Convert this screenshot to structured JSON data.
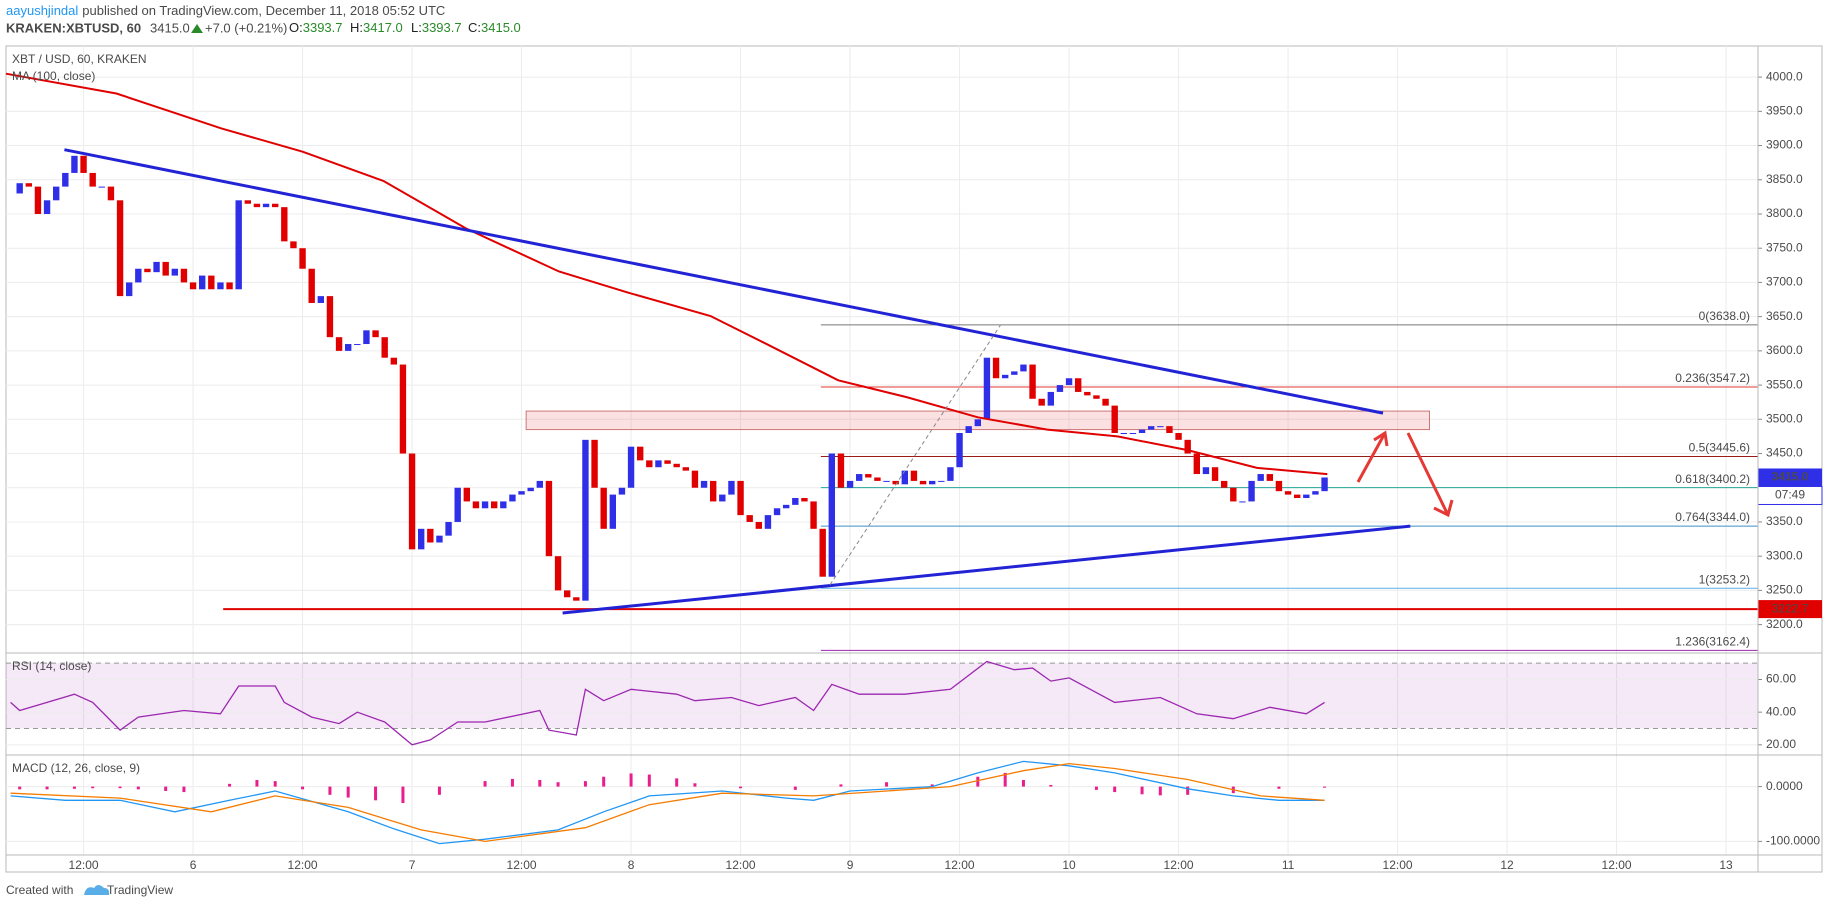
{
  "header": {
    "author": "aayushjindal",
    "published": "published on TradingView.com, December 11, 2018 05:52 UTC",
    "symbol": "KRAKEN:XBTUSD, 60",
    "last": "3415.0",
    "change": "+7.0 (+0.21%)",
    "ohlc": [
      {
        "k": "O:",
        "v": "3393.7"
      },
      {
        "k": "H:",
        "v": "3417.0"
      },
      {
        "k": "L:",
        "v": "3393.7"
      },
      {
        "k": "C:",
        "v": "3415.0"
      }
    ]
  },
  "footer": {
    "created": "Created with",
    "brand": "TradingView"
  },
  "chart_data": [
    {
      "type": "candlestick",
      "title": "XBT / USD, 60, KRAKEN",
      "up_color": "#2f2fe8",
      "down_color": "#e00000",
      "values": [
        3830,
        3845,
        3840,
        3800,
        3820,
        3840,
        3860,
        3885,
        3860,
        3840,
        3840,
        3820,
        3680,
        3700,
        3720,
        3715,
        3730,
        3710,
        3720,
        3700,
        3690,
        3710,
        3690,
        3700,
        3690,
        3820,
        3815,
        3810,
        3815,
        3810,
        3760,
        3750,
        3720,
        3670,
        3680,
        3620,
        3600,
        3610,
        3610,
        3630,
        3620,
        3590,
        3580,
        3450,
        3310,
        3340,
        3320,
        3330,
        3350,
        3400,
        3380,
        3370,
        3380,
        3370,
        3380,
        3390,
        3395,
        3400,
        3410,
        3300,
        3250,
        3240,
        3235,
        3470,
        3400,
        3340,
        3390,
        3400,
        3460,
        3440,
        3430,
        3440,
        3435,
        3430,
        3425,
        3400,
        3410,
        3380,
        3390,
        3410,
        3360,
        3350,
        3340,
        3360,
        3370,
        3375,
        3385,
        3380,
        3340,
        3270,
        3450,
        3400,
        3410,
        3420,
        3415,
        3410,
        3410,
        3405,
        3425,
        3410,
        3405,
        3410,
        3410,
        3430,
        3480,
        3490,
        3500,
        3590,
        3560,
        3565,
        3570,
        3580,
        3530,
        3520,
        3540,
        3550,
        3560,
        3540,
        3535,
        3530,
        3520,
        3480,
        3480,
        3480,
        3485,
        3490,
        3490,
        3480,
        3470,
        3450,
        3420,
        3430,
        3410,
        3400,
        3380,
        3380,
        3410,
        3420,
        3410,
        3395,
        3390,
        3385,
        3390,
        3395,
        3415
      ],
      "xlim": [
        -0.5,
        191.5
      ],
      "xticks": [
        {
          "value": 8,
          "label": "12:00"
        },
        {
          "value": 20,
          "label": "6"
        },
        {
          "value": 32,
          "label": "12:00"
        },
        {
          "value": 44,
          "label": "7"
        },
        {
          "value": 56,
          "label": "12:00"
        },
        {
          "value": 68,
          "label": "8"
        },
        {
          "value": 80,
          "label": "12:00"
        },
        {
          "value": 92,
          "label": "9"
        },
        {
          "value": 104,
          "label": "12:00"
        },
        {
          "value": 116,
          "label": "10"
        },
        {
          "value": 128,
          "label": "12:00"
        },
        {
          "value": 140,
          "label": "11"
        },
        {
          "value": 152,
          "label": "12:00"
        },
        {
          "value": 164,
          "label": "12"
        },
        {
          "value": 176,
          "label": "12:00"
        },
        {
          "value": 188,
          "label": "13"
        }
      ],
      "ylim": [
        3160,
        4044
      ],
      "yticks": [
        {
          "value": 3200,
          "label": "3200.0"
        },
        {
          "value": 3250,
          "label": "3250.0"
        },
        {
          "value": 3300,
          "label": "3300.0"
        },
        {
          "value": 3350,
          "label": "3350.0"
        },
        {
          "value": 3400,
          "label": "3400.0"
        },
        {
          "value": 3450,
          "label": "3450.0"
        },
        {
          "value": 3500,
          "label": "3500.0"
        },
        {
          "value": 3550,
          "label": "3550.0"
        },
        {
          "value": 3600,
          "label": "3600.0"
        },
        {
          "value": 3650,
          "label": "3650.0"
        },
        {
          "value": 3700,
          "label": "3700.0"
        },
        {
          "value": 3750,
          "label": "3750.0"
        },
        {
          "value": 3800,
          "label": "3800.0"
        },
        {
          "value": 3850,
          "label": "3850.0"
        },
        {
          "value": 3900,
          "label": "3900.0"
        },
        {
          "value": 3950,
          "label": "3950.0"
        },
        {
          "value": 4000,
          "label": "4000.0"
        }
      ],
      "grid": true,
      "overlays": [
        {
          "name": "MA (100, close)",
          "color": "#e00000",
          "x": [
            -0.5,
            11.6,
            23.1,
            32,
            40.9,
            49.9,
            60.1,
            67.7,
            76.7,
            83,
            90.7,
            98.3,
            106,
            113.6,
            121.3,
            129,
            136.6,
            144.3
          ],
          "values": [
            4005,
            3976,
            3925,
            3891,
            3848,
            3779,
            3716,
            3685,
            3651,
            3609,
            3557,
            3532,
            3503,
            3485,
            3475,
            3455,
            3429,
            3420
          ]
        }
      ],
      "trendlines": [
        {
          "color": "#2323d6",
          "width": 3,
          "x": [
            5.9,
            150.4
          ],
          "values": [
            3894,
            3509
          ]
        },
        {
          "color": "#2323d6",
          "width": 3,
          "x": [
            60.5,
            153.4
          ],
          "values": [
            3217,
            3344
          ]
        },
        {
          "color": "#888888",
          "width": 1,
          "dash": true,
          "x": [
            89.8,
            108.5
          ],
          "values": [
            3258,
            3638
          ]
        }
      ],
      "zone": {
        "x": [
          56.5,
          155.5
        ],
        "values": [
          3485,
          3512
        ]
      },
      "support": {
        "value": 3222.7,
        "label": "3222.7",
        "color": "#e00000",
        "x_start": 23.3
      },
      "fib": {
        "x_start": 88.8,
        "levels": [
          {
            "value": 3638,
            "label": "0(3638.0)",
            "color": "#787878"
          },
          {
            "value": 3547.2,
            "label": "0.236(3547.2)",
            "color": "#e53935"
          },
          {
            "value": 3445.6,
            "label": "0.5(3445.6)",
            "color": "#9b1b1b"
          },
          {
            "value": 3400.2,
            "label": "0.618(3400.2)",
            "color": "#26a69a"
          },
          {
            "value": 3344,
            "label": "0.764(3344.0)",
            "color": "#3d8fc7"
          },
          {
            "value": 3253.2,
            "label": "1(3253.2)",
            "color": "#5aaee8"
          },
          {
            "value": 3162.4,
            "label": "1.236(3162.4)",
            "color": "#9c27b0"
          }
        ]
      },
      "last": {
        "value": 3415,
        "label": "3415.0",
        "countdown": "07:49",
        "color": "#2f2fe8"
      }
    },
    {
      "type": "line",
      "title": "RSI (14, close)",
      "xlim": [
        -0.5,
        191.5
      ],
      "ylim": [
        15,
        75
      ],
      "band": [
        30,
        70
      ],
      "yticks": [
        {
          "value": 20,
          "label": "20.00"
        },
        {
          "value": 40,
          "label": "40.00"
        },
        {
          "value": 60,
          "label": "60.00"
        }
      ],
      "series": [
        {
          "color": "#9c27b0",
          "x": [
            0,
            1,
            4,
            7,
            9,
            12,
            14,
            19,
            23,
            25,
            29,
            30,
            33,
            36,
            38,
            41,
            44,
            46,
            49,
            52,
            58,
            59,
            62,
            63,
            65,
            68,
            73,
            75,
            79,
            82,
            86,
            88,
            90,
            93,
            98,
            103,
            107,
            110,
            112,
            114,
            116,
            121,
            126,
            130,
            134,
            138,
            142,
            144
          ],
          "values": [
            46,
            41,
            46,
            51,
            46,
            29,
            37,
            41,
            39,
            56,
            56,
            46,
            37,
            33,
            40,
            34,
            20,
            23,
            34,
            34,
            41,
            29,
            26,
            54,
            47,
            54,
            51,
            47,
            49,
            44,
            49,
            41,
            57,
            51,
            51,
            54,
            71,
            66,
            67,
            59,
            61,
            46,
            49,
            39,
            36,
            43,
            39,
            46
          ]
        }
      ]
    },
    {
      "type": "combo",
      "title": "MACD (12, 26, close, 9)",
      "xlim": [
        -0.5,
        191.5
      ],
      "ylim": [
        -123,
        54
      ],
      "yticks": [
        {
          "value": -100,
          "label": "-100.0000"
        },
        {
          "value": 0,
          "label": "0.0000"
        }
      ],
      "series": [
        {
          "type": "bar",
          "color": "#e91e8c",
          "x": [
            1,
            4,
            7,
            9,
            12,
            14,
            17,
            19,
            24,
            27,
            29,
            32,
            35,
            37,
            40,
            43,
            47,
            52,
            55,
            58,
            60,
            63,
            65,
            68,
            70,
            73,
            75,
            80,
            86,
            91,
            96,
            101,
            106,
            109,
            111,
            114,
            119,
            121,
            124,
            126,
            129,
            134,
            139,
            144
          ],
          "values": [
            -5,
            -5,
            -4,
            -3,
            -3,
            -5,
            -8,
            -10,
            5,
            12,
            10,
            -5,
            -15,
            -20,
            -25,
            -30,
            -15,
            10,
            14,
            12,
            8,
            10,
            18,
            24,
            22,
            15,
            6,
            -3,
            -6,
            4,
            8,
            4,
            18,
            25,
            12,
            3,
            -6,
            -10,
            -14,
            -16,
            -15,
            -12,
            -4,
            -2
          ]
        },
        {
          "type": "line",
          "color": "#2196f3",
          "x": [
            0,
            6,
            12,
            18,
            24,
            29,
            37,
            42,
            47,
            52,
            60,
            65,
            70,
            78,
            85,
            88,
            92,
            101,
            106,
            111,
            116,
            121,
            129,
            134,
            139,
            144
          ],
          "values": [
            -17,
            -25,
            -25,
            -46,
            -25,
            -8,
            -46,
            -77,
            -104,
            -96,
            -79,
            -46,
            -17,
            -8,
            -21,
            -25,
            -8,
            0,
            25,
            46,
            38,
            25,
            -4,
            -17,
            -25,
            -25
          ]
        },
        {
          "type": "line",
          "color": "#f57c00",
          "x": [
            0,
            12,
            22,
            29,
            37,
            45,
            52,
            63,
            70,
            78,
            88,
            96,
            103,
            111,
            116,
            121,
            129,
            137,
            144
          ],
          "values": [
            -12,
            -21,
            -46,
            -17,
            -38,
            -79,
            -100,
            -75,
            -33,
            -12,
            -17,
            -8,
            0,
            29,
            42,
            33,
            13,
            -17,
            -25
          ]
        }
      ]
    }
  ]
}
